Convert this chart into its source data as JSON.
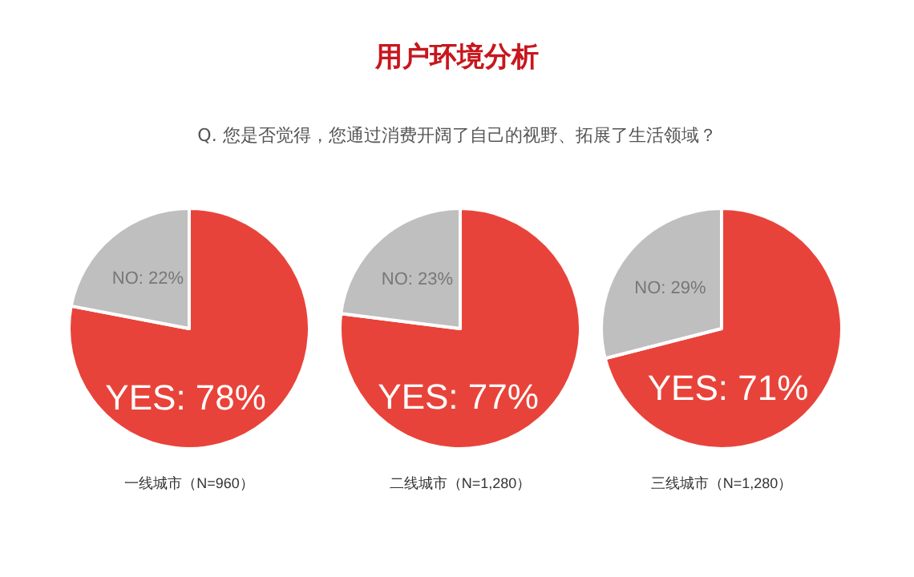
{
  "chart_data": [
    {
      "type": "pie",
      "xlabel": "一线城市（N=960）",
      "categories": [
        "YES",
        "NO"
      ],
      "values": [
        78,
        22
      ],
      "value_labels": [
        "78%",
        "22%"
      ],
      "colors": [
        "#e8433a",
        "#bfbfbf"
      ],
      "legend": false
    },
    {
      "type": "pie",
      "title": "用户环境分析",
      "subtitle": "Q. 您是否觉得，您通过消费开阔了自己的视野、拓展了生活领域？",
      "xlabel": "二线城市（N=1,280）",
      "categories": [
        "YES",
        "NO"
      ],
      "values": [
        77,
        23
      ],
      "value_labels": [
        "77%",
        "23%"
      ],
      "colors": [
        "#e8433a",
        "#bfbfbf"
      ],
      "legend": false
    },
    {
      "type": "pie",
      "xlabel": "三线城市（N=1,280）",
      "categories": [
        "YES",
        "NO"
      ],
      "values": [
        71,
        29
      ],
      "value_labels": [
        "71%",
        "29%"
      ],
      "colors": [
        "#e8433a",
        "#bfbfbf"
      ],
      "legend": false
    }
  ]
}
